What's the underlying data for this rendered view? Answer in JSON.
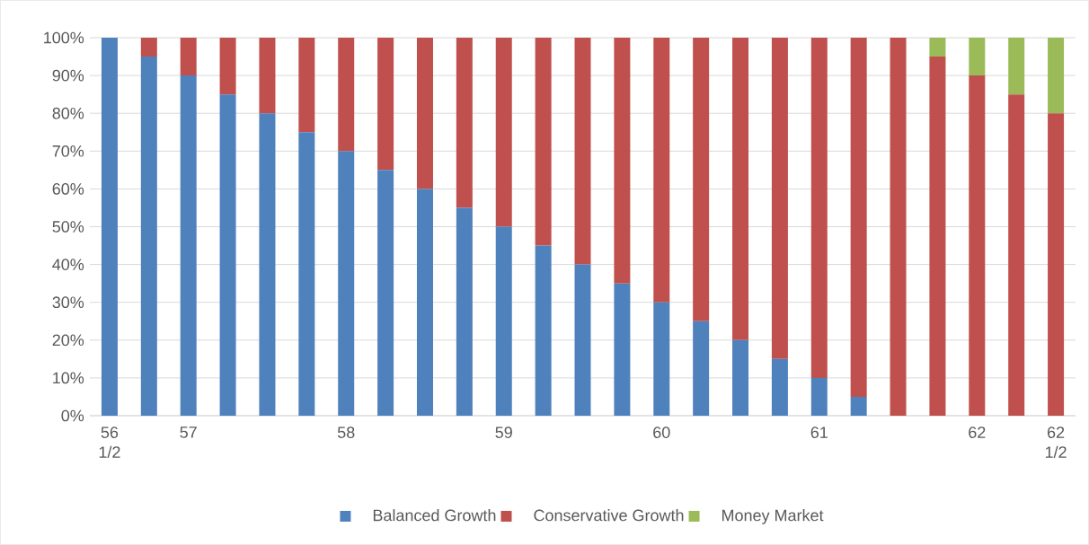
{
  "chart_data": {
    "type": "bar",
    "stacked": true,
    "categories": [
      "56 1/2",
      null,
      "57",
      null,
      null,
      null,
      "58",
      null,
      null,
      null,
      "59",
      null,
      null,
      null,
      "60",
      null,
      null,
      null,
      "61",
      null,
      null,
      null,
      "62",
      null,
      "62 1/2"
    ],
    "series": [
      {
        "name": "Balanced Growth",
        "color": "#4f81bd",
        "values": [
          100,
          95,
          90,
          85,
          80,
          75,
          70,
          65,
          60,
          55,
          50,
          45,
          40,
          35,
          30,
          25,
          20,
          15,
          10,
          5,
          0,
          0,
          0,
          0,
          0
        ]
      },
      {
        "name": "Conservative Growth",
        "color": "#c0504d",
        "values": [
          0,
          5,
          10,
          15,
          20,
          25,
          30,
          35,
          40,
          45,
          50,
          55,
          60,
          65,
          70,
          75,
          80,
          85,
          90,
          95,
          100,
          95,
          90,
          85,
          80
        ]
      },
      {
        "name": "Money Market",
        "color": "#9bbb59",
        "values": [
          0,
          0,
          0,
          0,
          0,
          0,
          0,
          0,
          0,
          0,
          0,
          0,
          0,
          0,
          0,
          0,
          0,
          0,
          0,
          0,
          0,
          5,
          10,
          15,
          20
        ]
      }
    ],
    "ylim": [
      0,
      100
    ],
    "yticks": [
      {
        "value": 0,
        "label": "0%"
      },
      {
        "value": 10,
        "label": "10%"
      },
      {
        "value": 20,
        "label": "20%"
      },
      {
        "value": 30,
        "label": "30%"
      },
      {
        "value": 40,
        "label": "40%"
      },
      {
        "value": 50,
        "label": "50%"
      },
      {
        "value": 60,
        "label": "60%"
      },
      {
        "value": 70,
        "label": "70%"
      },
      {
        "value": 80,
        "label": "80%"
      },
      {
        "value": 90,
        "label": "90%"
      },
      {
        "value": 100,
        "label": "100%"
      }
    ],
    "grid": "y",
    "legend": "bottom"
  }
}
